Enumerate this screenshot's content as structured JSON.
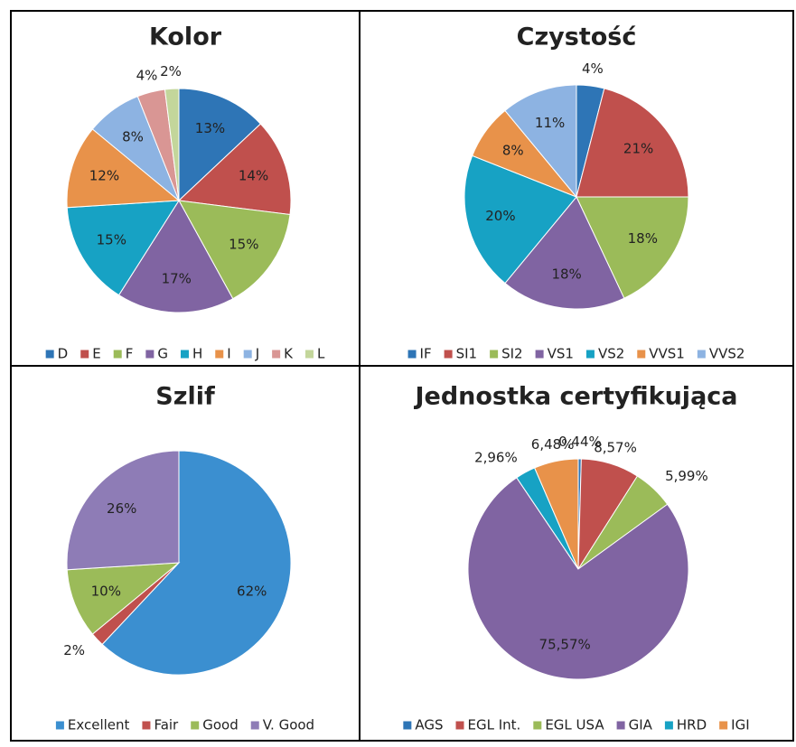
{
  "chart_data": [
    {
      "type": "pie",
      "title": "Kolor",
      "categories": [
        "D",
        "E",
        "F",
        "G",
        "H",
        "I",
        "J",
        "K",
        "L"
      ],
      "values": [
        13,
        14,
        15,
        17,
        15,
        12,
        8,
        4,
        2
      ],
      "value_labels": [
        "13%",
        "14%",
        "15%",
        "17%",
        "15%",
        "12%",
        "8%",
        "4%",
        "2%"
      ],
      "colors": [
        "#2e75b6",
        "#c0504d",
        "#9bbb59",
        "#8064a2",
        "#17a2c4",
        "#e8924a",
        "#8db3e2",
        "#d99694",
        "#c3d69b"
      ]
    },
    {
      "type": "pie",
      "title": "Czystość",
      "categories": [
        "IF",
        "SI1",
        "SI2",
        "VS1",
        "VS2",
        "VVS1",
        "VVS2"
      ],
      "values": [
        4,
        21,
        18,
        18,
        20,
        8,
        11
      ],
      "value_labels": [
        "4%",
        "21%",
        "18%",
        "18%",
        "20%",
        "8%",
        "11%"
      ],
      "colors": [
        "#2e75b6",
        "#c0504d",
        "#9bbb59",
        "#8064a2",
        "#17a2c4",
        "#e8924a",
        "#8db3e2"
      ]
    },
    {
      "type": "pie",
      "title": "Szlif",
      "categories": [
        "Excellent",
        "Fair",
        "Good",
        "V. Good"
      ],
      "values": [
        62,
        2,
        10,
        26
      ],
      "value_labels": [
        "62%",
        "2%",
        "10%",
        "26%"
      ],
      "colors": [
        "#3b8fd0",
        "#c0504d",
        "#9bbb59",
        "#8e7cb6"
      ]
    },
    {
      "type": "pie",
      "title": "Jednostka certyfikująca",
      "categories": [
        "AGS",
        "EGL Int.",
        "EGL USA",
        "GIA",
        "HRD",
        "IGI"
      ],
      "values": [
        0.44,
        8.57,
        5.99,
        75.57,
        2.96,
        6.48
      ],
      "value_labels": [
        "0,44%",
        "8,57%",
        "5,99%",
        "75,57%",
        "2,96%",
        "6,48%"
      ],
      "colors": [
        "#2e75b6",
        "#c0504d",
        "#9bbb59",
        "#8064a2",
        "#17a2c4",
        "#e8924a"
      ]
    }
  ]
}
